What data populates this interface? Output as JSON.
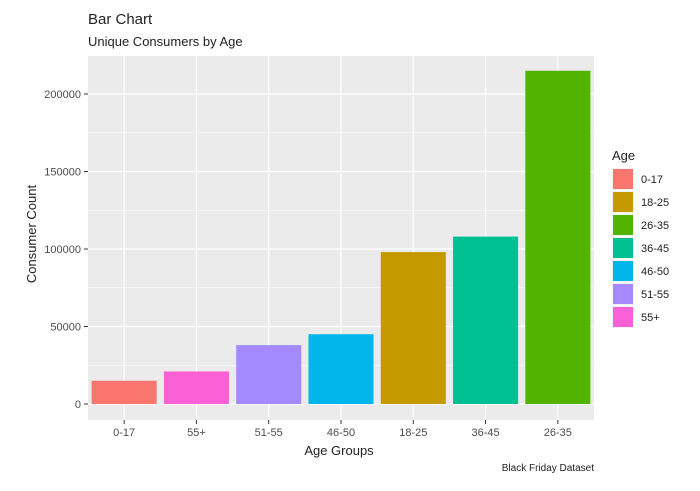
{
  "chart_data": {
    "type": "bar",
    "title": "Bar Chart",
    "subtitle": "Unique Consumers by Age",
    "xlabel": "Age Groups",
    "ylabel": "Consumer Count",
    "caption": "Black Friday Dataset",
    "categories": [
      "0-17",
      "55+",
      "51-55",
      "46-50",
      "18-25",
      "36-45",
      "26-35"
    ],
    "values": [
      15000,
      21000,
      38000,
      45000,
      98000,
      108000,
      215000
    ],
    "ylim": [
      0,
      225000
    ],
    "yticks": [
      0,
      50000,
      100000,
      150000,
      200000
    ],
    "ytick_labels": [
      "0",
      "50000",
      "100000",
      "150000",
      "200000"
    ],
    "grid": true,
    "legend": {
      "title": "Age",
      "position": "right",
      "entries": [
        "0-17",
        "18-25",
        "26-35",
        "36-45",
        "46-50",
        "51-55",
        "55+"
      ]
    },
    "colors": {
      "0-17": "#F8766D",
      "18-25": "#C49A00",
      "26-35": "#53B400",
      "36-45": "#00C094",
      "46-50": "#00B6EB",
      "51-55": "#A58AFF",
      "55+": "#FB61D7"
    },
    "panel_color": "#EBEBEB",
    "grid_color": "#FFFFFF"
  }
}
